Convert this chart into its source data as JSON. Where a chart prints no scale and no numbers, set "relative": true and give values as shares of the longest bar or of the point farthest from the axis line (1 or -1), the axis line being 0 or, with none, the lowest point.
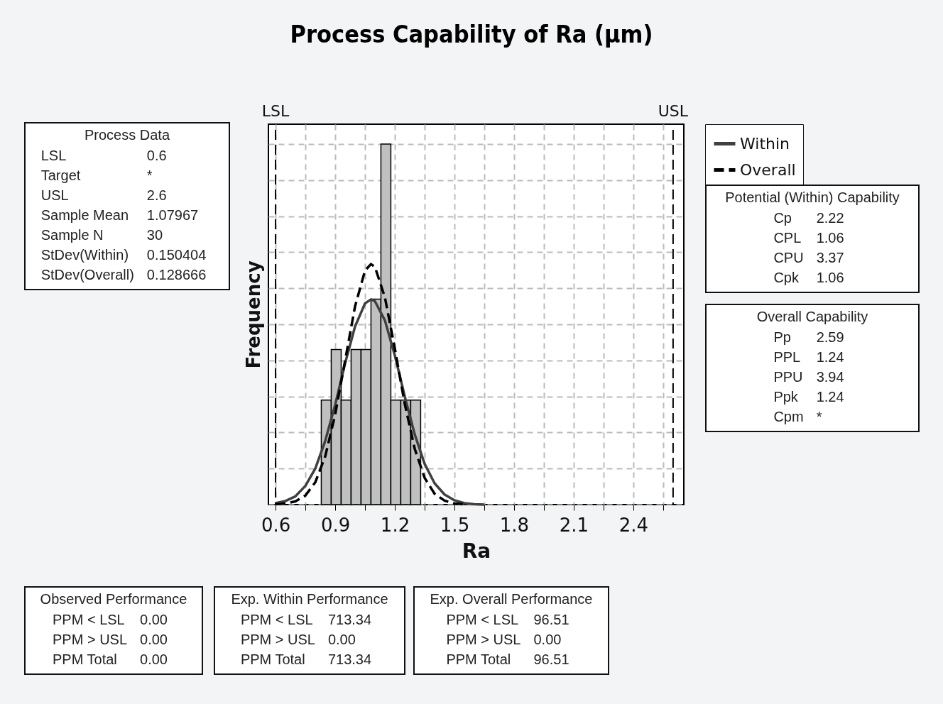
{
  "chart_data": {
    "type": "histogram",
    "title": "Process Capability of Ra (μm)",
    "xlabel": "Ra",
    "ylabel": "Frequency",
    "relative": true,
    "bins": [
      0.83,
      0.88,
      0.93,
      0.98,
      1.03,
      1.08,
      1.13,
      1.18,
      1.23,
      1.28,
      1.33
    ],
    "values": [
      0.29,
      0.43,
      0.29,
      0.43,
      0.43,
      0.57,
      1,
      0.29,
      0.29,
      0.29
    ],
    "color": "#c0c0c0",
    "series": [
      {
        "name": "Within",
        "type": "line",
        "color": "#404040",
        "line_style": "solid",
        "x": [
          0.6,
          0.65,
          0.7,
          0.75,
          0.8,
          0.85,
          0.9,
          0.95,
          1.0,
          1.05,
          1.08,
          1.1,
          1.15,
          1.2,
          1.25,
          1.3,
          1.35,
          1.4,
          1.45,
          1.5,
          1.55,
          1.6,
          1.65
        ],
        "values": [
          0.004,
          0.01,
          0.023,
          0.052,
          0.1,
          0.177,
          0.277,
          0.392,
          0.494,
          0.558,
          0.569,
          0.564,
          0.511,
          0.414,
          0.3,
          0.195,
          0.113,
          0.059,
          0.028,
          0.012,
          0.004,
          0.001,
          0
        ]
      },
      {
        "name": "Overall",
        "type": "line",
        "color": "#000000",
        "line_style": "dashed",
        "x": [
          0.6,
          0.65,
          0.7,
          0.75,
          0.8,
          0.85,
          0.9,
          0.95,
          1.0,
          1.05,
          1.08,
          1.1,
          1.15,
          1.2,
          1.25,
          1.3,
          1.35,
          1.4,
          1.45,
          1.5,
          1.55
        ],
        "values": [
          0.001,
          0.003,
          0.009,
          0.025,
          0.062,
          0.134,
          0.25,
          0.4,
          0.55,
          0.649,
          0.667,
          0.659,
          0.575,
          0.433,
          0.279,
          0.155,
          0.074,
          0.03,
          0.011,
          0.003,
          0.001
        ]
      }
    ],
    "xlim": [
      0.564,
      2.654
    ],
    "xticks": [
      0.6,
      {
        "value": 0.75,
        "label": null
      },
      0.9,
      {
        "value": 1.05,
        "label": null
      },
      1.2,
      {
        "value": 1.35,
        "label": null
      },
      1.5,
      {
        "value": 1.65,
        "label": null
      },
      1.8,
      {
        "value": 1.95,
        "label": null
      },
      2.1,
      {
        "value": 2.25,
        "label": null
      },
      2.4,
      {
        "value": 2.55,
        "label": null
      }
    ],
    "ref_lines": [
      {
        "axis": "x",
        "value": 0.6,
        "label": "LSL",
        "color": "#000000",
        "line_style": "dashed"
      },
      {
        "axis": "x",
        "value": 2.6,
        "label": "USL",
        "color": "#000000",
        "line_style": "dashed"
      }
    ],
    "grid": true,
    "legend": "right",
    "annotations": [
      "Process Data\nLSL\t0.6\nTarget\t*\nUSL\t2.6\nSample Mean\t1.07967\nSample N\t30\nStDev(Within)\t0.150404\nStDev(Overall)\t0.128666",
      "Potential (Within) Capability\nCp\t2.22\nCPL\t1.06\nCPU\t3.37\nCpk\t1.06",
      "Overall Capability\nPp\t2.59\nPPL\t1.24\nPPU\t3.94\nPpk\t1.24\nCpm\t*",
      "Observed Performance\nPPM < LSL\t0.00\nPPM > USL\t0.00\nPPM Total\t0.00",
      "Exp. Within Performance\nPPM < LSL\t713.34\nPPM > USL\t0.00\nPPM Total\t713.34",
      "Exp. Overall Performance\nPPM < LSL\t96.51\nPPM > USL\t0.00\nPPM Total\t96.51"
    ]
  }
}
